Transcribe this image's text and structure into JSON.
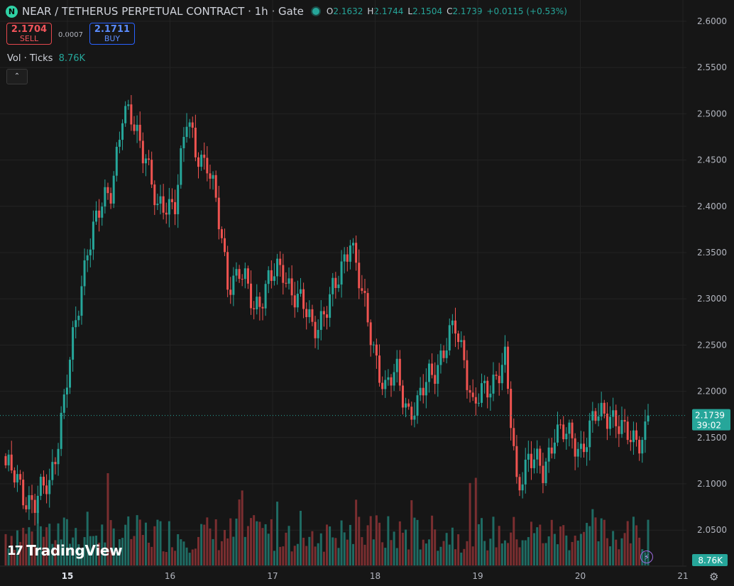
{
  "header": {
    "logo": "N",
    "title": "NEAR / TETHERUS PERPETUAL CONTRACT · 1h · Gate",
    "ohlc": [
      {
        "k": "O",
        "v": "2.1632"
      },
      {
        "k": "H",
        "v": "2.1744"
      },
      {
        "k": "L",
        "v": "2.1504"
      },
      {
        "k": "C",
        "v": "2.1739"
      },
      {
        "k": "",
        "v": "+0.0115 (+0.53%)"
      }
    ]
  },
  "trade": {
    "sell_price": "2.1704",
    "sell_label": "SELL",
    "spread": "0.0007",
    "buy_price": "2.1711",
    "buy_label": "BUY"
  },
  "volume_label": {
    "name": "Vol · Ticks",
    "value": "8.76K"
  },
  "collapse_icon": "⌃",
  "brand": {
    "mark": "17",
    "name": "TradingView"
  },
  "settings_icon": "⚙",
  "colors": {
    "up": "#26a69a",
    "down": "#ef5350",
    "up_vol": "#1f6b63",
    "down_vol": "#7a2e30",
    "grid": "#232323",
    "bg": "#161616"
  },
  "chart_data": {
    "type": "candlestick",
    "y_ticks": [
      "2.6000",
      "2.5500",
      "2.5000",
      "2.4500",
      "2.4000",
      "2.3500",
      "2.3000",
      "2.2500",
      "2.2000",
      "2.1500",
      "2.1000",
      "2.0500"
    ],
    "ylim": [
      2.03,
      2.61
    ],
    "x_ticks": [
      "15",
      "16",
      "17",
      "18",
      "19",
      "20",
      "21"
    ],
    "x_tick_bold": "15",
    "last_price": {
      "price": "2.1739",
      "countdown": "39:02",
      "value": 2.1739
    },
    "last_volume": "8.76K",
    "close_anchors": [
      [
        0,
        2.12
      ],
      [
        6,
        2.09
      ],
      [
        10,
        2.08
      ],
      [
        15,
        2.1
      ],
      [
        20,
        2.19
      ],
      [
        23,
        2.25
      ],
      [
        28,
        2.36
      ],
      [
        32,
        2.39
      ],
      [
        36,
        2.42
      ],
      [
        40,
        2.5
      ],
      [
        43,
        2.49
      ],
      [
        48,
        2.46
      ],
      [
        52,
        2.39
      ],
      [
        58,
        2.41
      ],
      [
        62,
        2.49
      ],
      [
        65,
        2.46
      ],
      [
        69,
        2.45
      ],
      [
        72,
        2.4
      ],
      [
        76,
        2.32
      ],
      [
        80,
        2.33
      ],
      [
        85,
        2.29
      ],
      [
        90,
        2.32
      ],
      [
        95,
        2.33
      ],
      [
        100,
        2.3
      ],
      [
        105,
        2.27
      ],
      [
        110,
        2.29
      ],
      [
        113,
        2.31
      ],
      [
        118,
        2.37
      ],
      [
        122,
        2.3
      ],
      [
        126,
        2.25
      ],
      [
        130,
        2.2
      ],
      [
        134,
        2.22
      ],
      [
        138,
        2.18
      ],
      [
        141,
        2.18
      ],
      [
        145,
        2.22
      ],
      [
        150,
        2.24
      ],
      [
        154,
        2.27
      ],
      [
        157,
        2.24
      ],
      [
        160,
        2.18
      ],
      [
        164,
        2.2
      ],
      [
        168,
        2.22
      ],
      [
        171,
        2.23
      ],
      [
        175,
        2.1
      ],
      [
        179,
        2.13
      ],
      [
        184,
        2.11
      ],
      [
        188,
        2.16
      ],
      [
        192,
        2.15
      ],
      [
        197,
        2.14
      ],
      [
        202,
        2.17
      ],
      [
        207,
        2.18
      ],
      [
        212,
        2.15
      ],
      [
        216,
        2.15
      ],
      [
        220,
        2.16
      ]
    ],
    "volume_max": "14K"
  }
}
